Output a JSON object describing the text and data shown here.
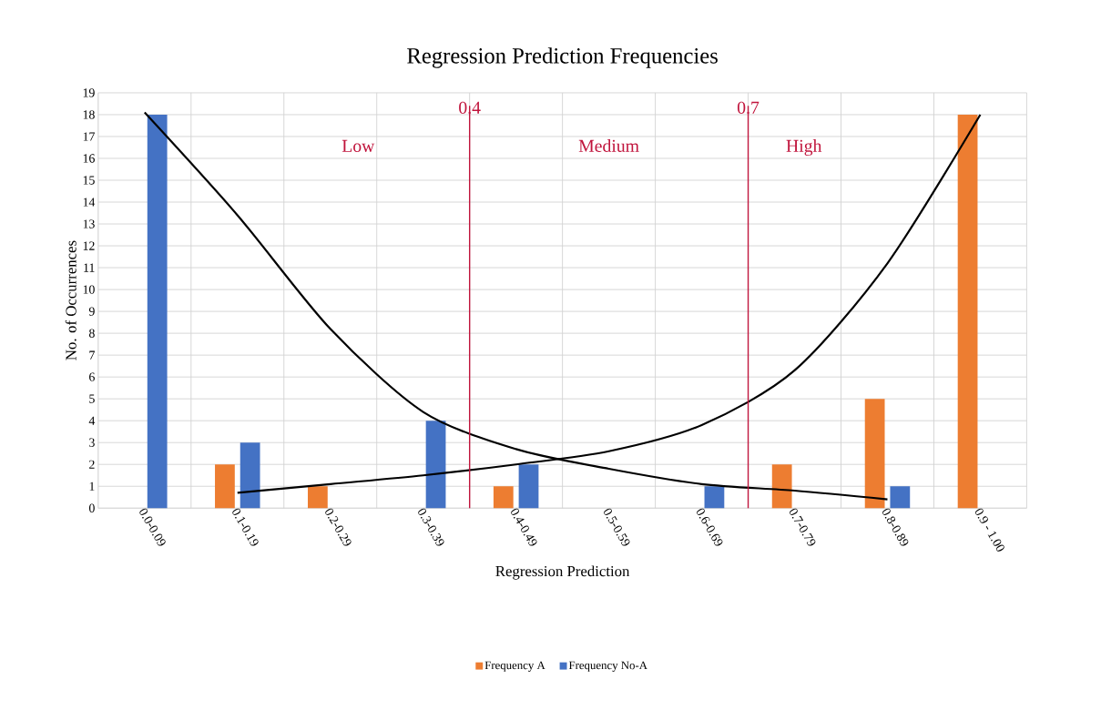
{
  "chart_data": {
    "type": "bar",
    "title": "Regression Prediction Frequencies",
    "xlabel": "Regression Prediction",
    "ylabel": "No. of Occurrences",
    "categories": [
      "0.0-0.09",
      "0.1-0.19",
      "0.2-0.29",
      "0.3-0.39",
      "0.4-0.49",
      "0.5-0.59",
      "0.6-0.69",
      "0.7-0.79",
      "0.8-0.89",
      "0.9 - 1.00"
    ],
    "series": [
      {
        "name": "Frequency A",
        "color": "#ed7d31",
        "values": [
          0,
          2,
          1,
          0,
          1,
          0,
          0,
          2,
          5,
          18
        ]
      },
      {
        "name": "Frequency No-A",
        "color": "#4472c4",
        "values": [
          18,
          3,
          0,
          4,
          2,
          0,
          1,
          0,
          1,
          0
        ]
      },
      {
        "type": "line",
        "color": "#000000",
        "values": [
          18.1,
          13.4,
          8.2,
          4.4,
          2.7,
          1.8,
          1.1,
          0.8,
          0.4,
          null
        ]
      },
      {
        "type": "line",
        "color": "#000000",
        "values": [
          null,
          0.7,
          1.1,
          1.5,
          2.0,
          2.6,
          3.8,
          6.3,
          11.2,
          18.0
        ]
      }
    ],
    "ylim": [
      0,
      19
    ],
    "yticks": [
      0,
      1,
      2,
      3,
      4,
      5,
      6,
      7,
      8,
      9,
      10,
      11,
      12,
      13,
      14,
      15,
      16,
      17,
      18,
      19
    ],
    "grid": true,
    "legend": "bottom",
    "annotations": [
      "0.4",
      "0.7",
      "Low",
      "Medium",
      "High"
    ]
  }
}
